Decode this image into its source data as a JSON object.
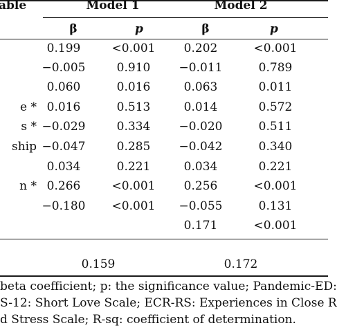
{
  "header": {
    "variable_label": "able",
    "model1": "Model 1",
    "model2": "Model 2",
    "beta": "β",
    "p": "p"
  },
  "rows": [
    {
      "label": "",
      "m1b": "0.199",
      "m1p": "<0.001",
      "m2b": "0.202",
      "m2p": "<0.001"
    },
    {
      "label": "",
      "m1b": "−0.005",
      "m1p": "0.910",
      "m2b": "−0.011",
      "m2p": "0.789"
    },
    {
      "label": "",
      "m1b": "0.060",
      "m1p": "0.016",
      "m2b": "0.063",
      "m2p": "0.011"
    },
    {
      "label": "e *",
      "m1b": "0.016",
      "m1p": "0.513",
      "m2b": "0.014",
      "m2p": "0.572"
    },
    {
      "label": "s *",
      "m1b": "−0.029",
      "m1p": "0.334",
      "m2b": "−0.020",
      "m2p": "0.511"
    },
    {
      "label": "ship",
      "m1b": "−0.047",
      "m1p": "0.285",
      "m2b": "−0.042",
      "m2p": "0.340"
    },
    {
      "label": "",
      "m1b": "0.034",
      "m1p": "0.221",
      "m2b": "0.034",
      "m2p": "0.221"
    },
    {
      "label": "n *",
      "m1b": "0.266",
      "m1p": "<0.001",
      "m2b": "0.256",
      "m2p": "<0.001"
    },
    {
      "label": "",
      "m1b": "−0.180",
      "m1p": "<0.001",
      "m2b": "−0.055",
      "m2p": "0.131"
    },
    {
      "label": "",
      "m1b": "",
      "m1p": "",
      "m2b": "0.171",
      "m2p": "<0.001"
    }
  ],
  "rsq": {
    "model1": "0.159",
    "model2": "0.172"
  },
  "notes": [
    "beta coefficient; p: the significance value; Pandemic-ED:",
    "S-12: Short Love Scale; ECR-RS: Experiences in Close R",
    "d Stress Scale; R-sq: coefficient of determination."
  ]
}
